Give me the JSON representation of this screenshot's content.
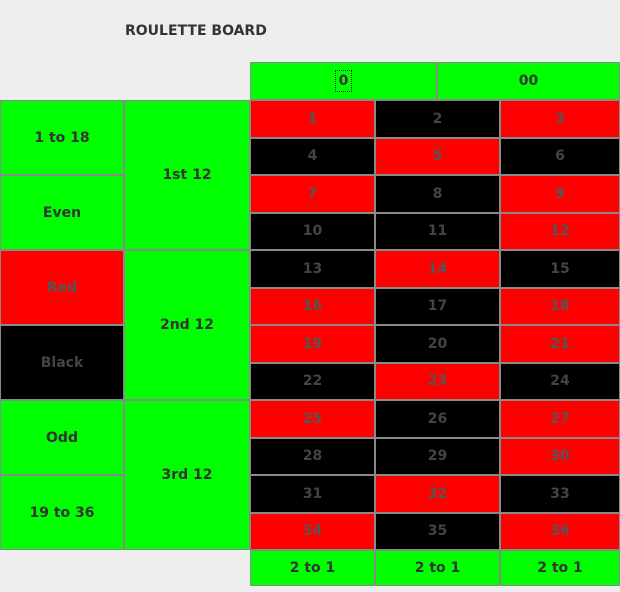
{
  "title": "ROULETTE BOARD",
  "colors": {
    "green": "#00ff00",
    "red": "#ff0000",
    "black": "#000000",
    "background": "#eeeeee"
  },
  "zeros": {
    "zero": "0",
    "double_zero": "00"
  },
  "outside_bets": {
    "low": "1 to 18",
    "even": "Even",
    "red": "Red",
    "black": "Black",
    "odd": "Odd",
    "high": "19 to 36"
  },
  "dozens": {
    "first": "1st 12",
    "second": "2nd 12",
    "third": "3rd 12"
  },
  "numbers": [
    {
      "label": "1",
      "color": "red"
    },
    {
      "label": "2",
      "color": "black"
    },
    {
      "label": "3",
      "color": "red"
    },
    {
      "label": "4",
      "color": "black"
    },
    {
      "label": "5",
      "color": "red"
    },
    {
      "label": "6",
      "color": "black"
    },
    {
      "label": "7",
      "color": "red"
    },
    {
      "label": "8",
      "color": "black"
    },
    {
      "label": "9",
      "color": "red"
    },
    {
      "label": "10",
      "color": "black"
    },
    {
      "label": "11",
      "color": "black"
    },
    {
      "label": "12",
      "color": "red"
    },
    {
      "label": "13",
      "color": "black"
    },
    {
      "label": "14",
      "color": "red"
    },
    {
      "label": "15",
      "color": "black"
    },
    {
      "label": "16",
      "color": "red"
    },
    {
      "label": "17",
      "color": "black"
    },
    {
      "label": "18",
      "color": "red"
    },
    {
      "label": "19",
      "color": "red"
    },
    {
      "label": "20",
      "color": "black"
    },
    {
      "label": "21",
      "color": "red"
    },
    {
      "label": "22",
      "color": "black"
    },
    {
      "label": "23",
      "color": "red"
    },
    {
      "label": "24",
      "color": "black"
    },
    {
      "label": "25",
      "color": "red"
    },
    {
      "label": "26",
      "color": "black"
    },
    {
      "label": "27",
      "color": "red"
    },
    {
      "label": "28",
      "color": "black"
    },
    {
      "label": "29",
      "color": "black"
    },
    {
      "label": "30",
      "color": "red"
    },
    {
      "label": "31",
      "color": "black"
    },
    {
      "label": "32",
      "color": "red"
    },
    {
      "label": "33",
      "color": "black"
    },
    {
      "label": "34",
      "color": "red"
    },
    {
      "label": "35",
      "color": "black"
    },
    {
      "label": "36",
      "color": "red"
    }
  ],
  "columns": [
    "2 to 1",
    "2 to 1",
    "2 to 1"
  ]
}
